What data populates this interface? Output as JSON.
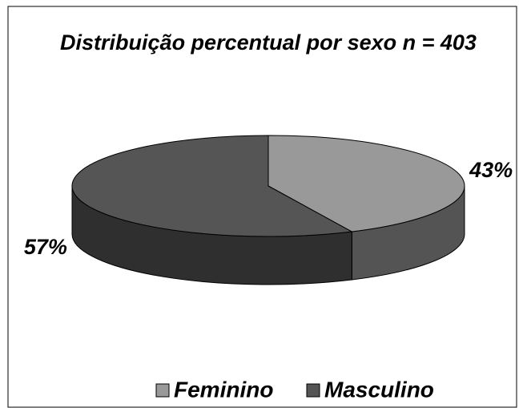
{
  "chart_data": {
    "type": "pie3d",
    "title": "Distribuição percentual por sexo n = 403",
    "categories": [
      "Feminino",
      "Masculino"
    ],
    "values": [
      43,
      57
    ],
    "value_labels": [
      "43%",
      "57%"
    ],
    "colors": [
      "#999999",
      "#555555"
    ],
    "legend": "bottom"
  }
}
